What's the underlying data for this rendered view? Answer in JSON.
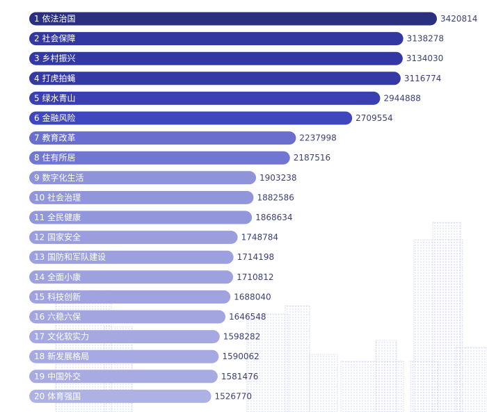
{
  "chart_data": {
    "type": "bar",
    "orientation": "horizontal",
    "categories": [
      "依法治国",
      "社会保障",
      "乡村振兴",
      "打虎拍蝇",
      "绿水青山",
      "金融风险",
      "教育改革",
      "住有所居",
      "数字化生活",
      "社会治理",
      "全民健康",
      "国家安全",
      "国防和军队建设",
      "全面小康",
      "科技创新",
      "六稳六保",
      "文化软实力",
      "新发展格局",
      "中国外交",
      "体育强国"
    ],
    "rank_labels": [
      "1 依法治国",
      "2 社会保障",
      "3 乡村振兴",
      "4 打虎拍蝇",
      "5 绿水青山",
      "6 金融风险",
      "7 教育改革",
      "8 住有所居",
      "9 数字化生活",
      "10 社会治理",
      "11 全民健康",
      "12 国家安全",
      "13 国防和军队建设",
      "14 全面小康",
      "15 科技创新",
      "16 六稳六保",
      "17 文化软实力",
      "18 新发展格局",
      "19 中国外交",
      "20 体育强国"
    ],
    "values": [
      3420814,
      3138278,
      3134030,
      3116774,
      2944888,
      2709554,
      2237998,
      2187516,
      1903238,
      1882586,
      1868634,
      1748784,
      1714198,
      1710812,
      1688040,
      1646548,
      1598282,
      1590062,
      1581476,
      1526770
    ],
    "value_labels": [
      "3420814",
      "3138278",
      "3134030",
      "3116774",
      "2944888",
      "2709554",
      "2237998",
      "2187516",
      "1903238",
      "1882586",
      "1868634",
      "1748784",
      "1714198",
      "1710812",
      "1688040",
      "1646548",
      "1598282",
      "1590062",
      "1581476",
      "1526770"
    ],
    "colors": [
      "#2b2f80",
      "#3337a0",
      "#3438a4",
      "#3539a6",
      "#3a3fb2",
      "#4046c0",
      "#6a6fce",
      "#7176d2",
      "#8f93d9",
      "#9195da",
      "#9296db",
      "#9a9edd",
      "#9da0de",
      "#9da1de",
      "#9fa2df",
      "#a2a5e0",
      "#a6a9e1",
      "#a7aae2",
      "#a8abe2",
      "#aeb1e4"
    ],
    "title": "",
    "xlabel": "",
    "ylabel": "",
    "xlim": [
      0,
      3420814
    ],
    "grid": false,
    "legend": "none"
  },
  "background": {
    "decoration": "dotted city skyline",
    "color": "#c7cdeb"
  }
}
